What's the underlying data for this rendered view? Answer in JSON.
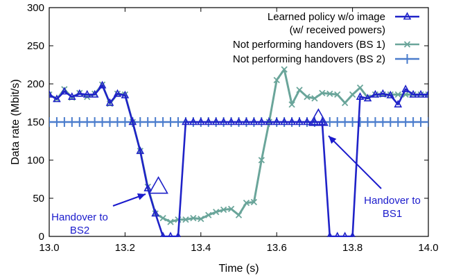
{
  "chart_data": {
    "type": "line",
    "xlabel": "Time (s)",
    "ylabel": "Data rate (Mbit/s)",
    "xlim": [
      13.0,
      14.0
    ],
    "ylim": [
      0,
      300
    ],
    "x_ticks": [
      "13.0",
      "13.2",
      "13.4",
      "13.6",
      "13.8",
      "14.0"
    ],
    "y_ticks": [
      "0",
      "50",
      "100",
      "150",
      "200",
      "250",
      "300"
    ],
    "grid": false,
    "legend_position": "top-right",
    "series": [
      {
        "name": "Learned policy w/o image (w/ received powers)",
        "legend_lines": [
          "Learned policy w/o image",
          "(w/ received powers)"
        ],
        "color": "#1f22c8",
        "marker": "triangle",
        "x": [
          13.0,
          13.02,
          13.04,
          13.06,
          13.08,
          13.1,
          13.12,
          13.14,
          13.16,
          13.18,
          13.2,
          13.22,
          13.24,
          13.26,
          13.28,
          13.3,
          13.32,
          13.34,
          13.36,
          13.38,
          13.4,
          13.42,
          13.44,
          13.46,
          13.48,
          13.5,
          13.52,
          13.54,
          13.56,
          13.58,
          13.6,
          13.62,
          13.64,
          13.66,
          13.68,
          13.7,
          13.72,
          13.74,
          13.76,
          13.78,
          13.8,
          13.82,
          13.84,
          13.86,
          13.88,
          13.9,
          13.92,
          13.94,
          13.96,
          13.98,
          14.0
        ],
        "y": [
          186,
          180,
          190,
          183,
          187,
          186,
          186,
          198,
          175,
          187,
          185,
          150,
          112,
          63,
          30,
          0,
          0,
          0,
          150,
          150,
          150,
          150,
          150,
          150,
          150,
          150,
          150,
          150,
          150,
          150,
          150,
          150,
          150,
          150,
          150,
          150,
          150,
          0,
          0,
          0,
          0,
          183,
          181,
          186,
          187,
          185,
          173,
          193,
          186,
          186,
          186
        ]
      },
      {
        "name": "Not performing handovers (BS 1)",
        "color": "#6aa59a",
        "marker": "x",
        "x": [
          13.0,
          13.02,
          13.04,
          13.06,
          13.08,
          13.1,
          13.12,
          13.14,
          13.16,
          13.18,
          13.2,
          13.22,
          13.24,
          13.26,
          13.28,
          13.3,
          13.32,
          13.34,
          13.36,
          13.38,
          13.4,
          13.42,
          13.44,
          13.46,
          13.48,
          13.5,
          13.52,
          13.54,
          13.56,
          13.58,
          13.6,
          13.62,
          13.64,
          13.66,
          13.68,
          13.7,
          13.72,
          13.74,
          13.76,
          13.78,
          13.8,
          13.82,
          13.84,
          13.86,
          13.88,
          13.9,
          13.92,
          13.94,
          13.96,
          13.98,
          14.0
        ],
        "y": [
          186,
          180,
          193,
          182,
          188,
          183,
          187,
          199,
          174,
          187,
          186,
          150,
          112,
          65,
          30,
          24,
          19,
          22,
          22,
          24,
          23,
          28,
          32,
          35,
          36,
          28,
          44,
          45,
          100,
          150,
          205,
          219,
          173,
          192,
          183,
          181,
          188,
          187,
          186,
          175,
          186,
          195,
          182,
          186,
          186,
          186,
          186,
          186,
          186,
          186,
          186
        ]
      },
      {
        "name": "Not performing handovers (BS 2)",
        "color": "#4a7ccc",
        "marker": "plus",
        "x": [
          13.0,
          13.02,
          13.04,
          13.06,
          13.08,
          13.1,
          13.12,
          13.14,
          13.16,
          13.18,
          13.2,
          13.22,
          13.24,
          13.26,
          13.28,
          13.3,
          13.32,
          13.34,
          13.36,
          13.38,
          13.4,
          13.42,
          13.44,
          13.46,
          13.48,
          13.5,
          13.52,
          13.54,
          13.56,
          13.58,
          13.6,
          13.62,
          13.64,
          13.66,
          13.68,
          13.7,
          13.72,
          13.74,
          13.76,
          13.78,
          13.8,
          13.82,
          13.84,
          13.86,
          13.88,
          13.9,
          13.92,
          13.94,
          13.96,
          13.98,
          14.0
        ],
        "y": [
          150,
          150,
          150,
          150,
          150,
          150,
          150,
          150,
          150,
          150,
          150,
          150,
          150,
          150,
          150,
          150,
          150,
          150,
          150,
          150,
          150,
          150,
          150,
          150,
          150,
          150,
          150,
          150,
          150,
          150,
          150,
          150,
          150,
          150,
          150,
          150,
          150,
          150,
          150,
          150,
          150,
          150,
          150,
          150,
          150,
          150,
          150,
          150,
          150,
          150,
          150
        ]
      }
    ],
    "annotations": [
      {
        "lines": [
          "Handover to",
          "BS2"
        ],
        "color": "#1a1acc",
        "point": [
          13.288,
          63
        ]
      },
      {
        "lines": [
          "Handover to",
          "BS1"
        ],
        "color": "#1a1acc",
        "point": [
          13.71,
          152
        ]
      }
    ]
  }
}
